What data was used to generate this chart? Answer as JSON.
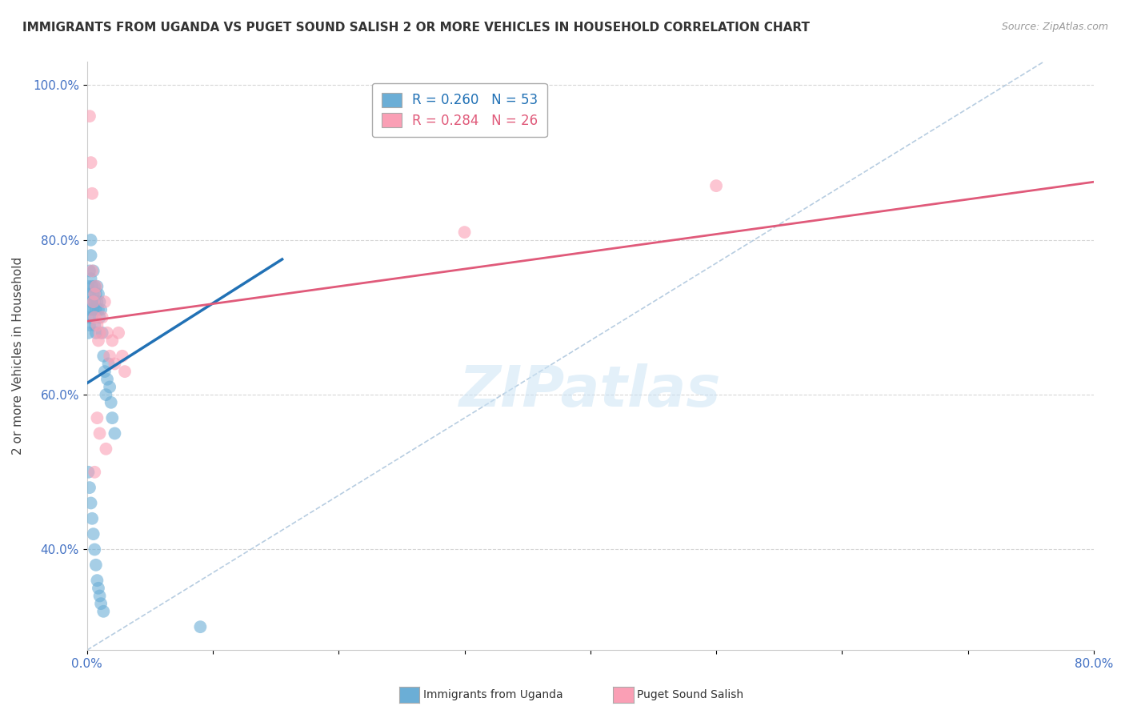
{
  "title": "IMMIGRANTS FROM UGANDA VS PUGET SOUND SALISH 2 OR MORE VEHICLES IN HOUSEHOLD CORRELATION CHART",
  "source": "Source: ZipAtlas.com",
  "ylabel": "2 or more Vehicles in Household",
  "legend_blue_text": "R = 0.260   N = 53",
  "legend_pink_text": "R = 0.284   N = 26",
  "blue_color": "#6baed6",
  "pink_color": "#fa9fb5",
  "blue_line_color": "#2171b5",
  "pink_line_color": "#e05a7a",
  "diagonal_color": "#b0c8de",
  "xlim": [
    0.0,
    0.8
  ],
  "ylim": [
    0.27,
    1.03
  ],
  "blue_line_x": [
    0.0,
    0.155
  ],
  "blue_line_y": [
    0.615,
    0.775
  ],
  "pink_line_x": [
    0.0,
    0.8
  ],
  "pink_line_y": [
    0.695,
    0.875
  ],
  "diag_line_x": [
    0.0,
    0.76
  ],
  "diag_line_y": [
    0.27,
    1.03
  ],
  "blue_scatter_x": [
    0.001,
    0.001,
    0.001,
    0.002,
    0.002,
    0.002,
    0.002,
    0.003,
    0.003,
    0.003,
    0.003,
    0.004,
    0.004,
    0.004,
    0.005,
    0.005,
    0.005,
    0.006,
    0.006,
    0.006,
    0.007,
    0.007,
    0.007,
    0.008,
    0.008,
    0.009,
    0.009,
    0.01,
    0.01,
    0.011,
    0.012,
    0.013,
    0.014,
    0.015,
    0.016,
    0.017,
    0.018,
    0.019,
    0.02,
    0.022,
    0.001,
    0.002,
    0.003,
    0.004,
    0.005,
    0.006,
    0.007,
    0.008,
    0.009,
    0.01,
    0.011,
    0.013,
    0.09
  ],
  "blue_scatter_y": [
    0.74,
    0.7,
    0.68,
    0.76,
    0.73,
    0.71,
    0.69,
    0.75,
    0.72,
    0.78,
    0.8,
    0.74,
    0.72,
    0.7,
    0.76,
    0.73,
    0.71,
    0.74,
    0.72,
    0.69,
    0.73,
    0.71,
    0.68,
    0.74,
    0.72,
    0.73,
    0.71,
    0.72,
    0.7,
    0.71,
    0.68,
    0.65,
    0.63,
    0.6,
    0.62,
    0.64,
    0.61,
    0.59,
    0.57,
    0.55,
    0.5,
    0.48,
    0.46,
    0.44,
    0.42,
    0.4,
    0.38,
    0.36,
    0.35,
    0.34,
    0.33,
    0.32,
    0.3
  ],
  "pink_scatter_x": [
    0.002,
    0.003,
    0.004,
    0.005,
    0.006,
    0.007,
    0.008,
    0.009,
    0.01,
    0.012,
    0.014,
    0.016,
    0.018,
    0.02,
    0.022,
    0.025,
    0.028,
    0.03,
    0.004,
    0.006,
    0.008,
    0.01,
    0.015,
    0.006,
    0.3,
    0.5
  ],
  "pink_scatter_y": [
    0.96,
    0.9,
    0.86,
    0.72,
    0.7,
    0.74,
    0.69,
    0.67,
    0.68,
    0.7,
    0.72,
    0.68,
    0.65,
    0.67,
    0.64,
    0.68,
    0.65,
    0.63,
    0.76,
    0.73,
    0.57,
    0.55,
    0.53,
    0.5,
    0.81,
    0.87
  ],
  "xtick_positions": [
    0.0,
    0.1,
    0.2,
    0.3,
    0.4,
    0.5,
    0.6,
    0.7,
    0.8
  ],
  "xtick_show": {
    "0.0": "0.0%",
    "0.8": "80.0%"
  },
  "ytick_positions": [
    0.4,
    0.6,
    0.8,
    1.0
  ],
  "ytick_labels": [
    "40.0%",
    "60.0%",
    "80.0%",
    "100.0%"
  ],
  "tick_color": "#4472c4",
  "watermark_text": "ZIPatlas",
  "legend_items": [
    "Immigrants from Uganda",
    "Puget Sound Salish"
  ]
}
